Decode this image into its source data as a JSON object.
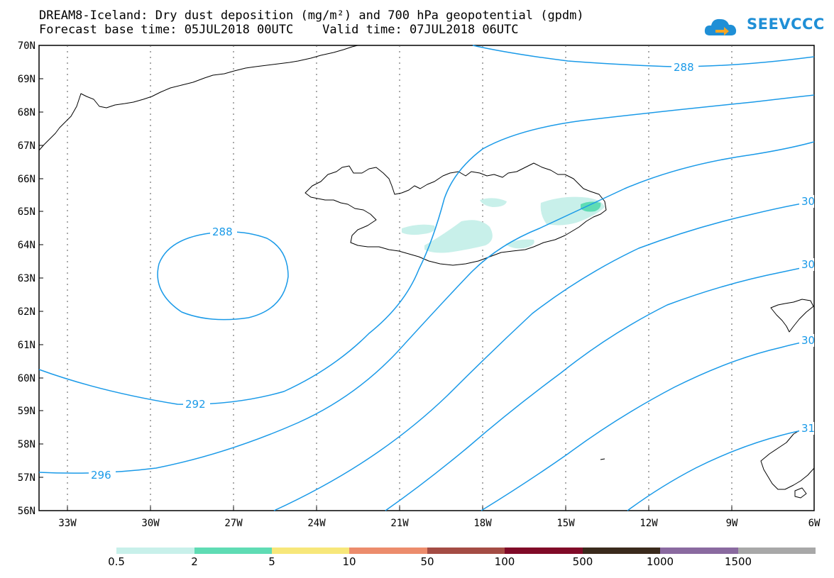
{
  "header": {
    "line1": "DREAM8-Iceland: Dry dust deposition (mg/m²) and 700 hPa geopotential (gpdm)",
    "line2": "Forecast base time: 05JUL2018 00UTC    Valid time: 07JUL2018 06UTC"
  },
  "logo": {
    "text": "SEEVCCC"
  },
  "axes": {
    "lat_labels": [
      "70N",
      "69N",
      "68N",
      "67N",
      "66N",
      "65N",
      "64N",
      "63N",
      "62N",
      "61N",
      "60N",
      "59N",
      "58N",
      "57N",
      "56N"
    ],
    "lon_labels": [
      "33W",
      "30W",
      "27W",
      "24W",
      "21W",
      "18W",
      "15W",
      "12W",
      "9W",
      "6W"
    ]
  },
  "contour_labels": [
    "288",
    "288",
    "292",
    "296",
    "30",
    "30",
    "30",
    "31"
  ],
  "colorbar": {
    "colors": [
      "#c8f0ea",
      "#5fdcb4",
      "#f7e77a",
      "#ec8c6c",
      "#a44c44",
      "#800a28",
      "#3a2a1c",
      "#8a6aa0",
      "#a8a8a8"
    ],
    "labels": [
      "0.5",
      "2",
      "5",
      "10",
      "50",
      "100",
      "500",
      "1000",
      "1500"
    ]
  },
  "colors": {
    "contour": "#1a9ae8",
    "coast": "#000000",
    "grid": "#555555"
  }
}
